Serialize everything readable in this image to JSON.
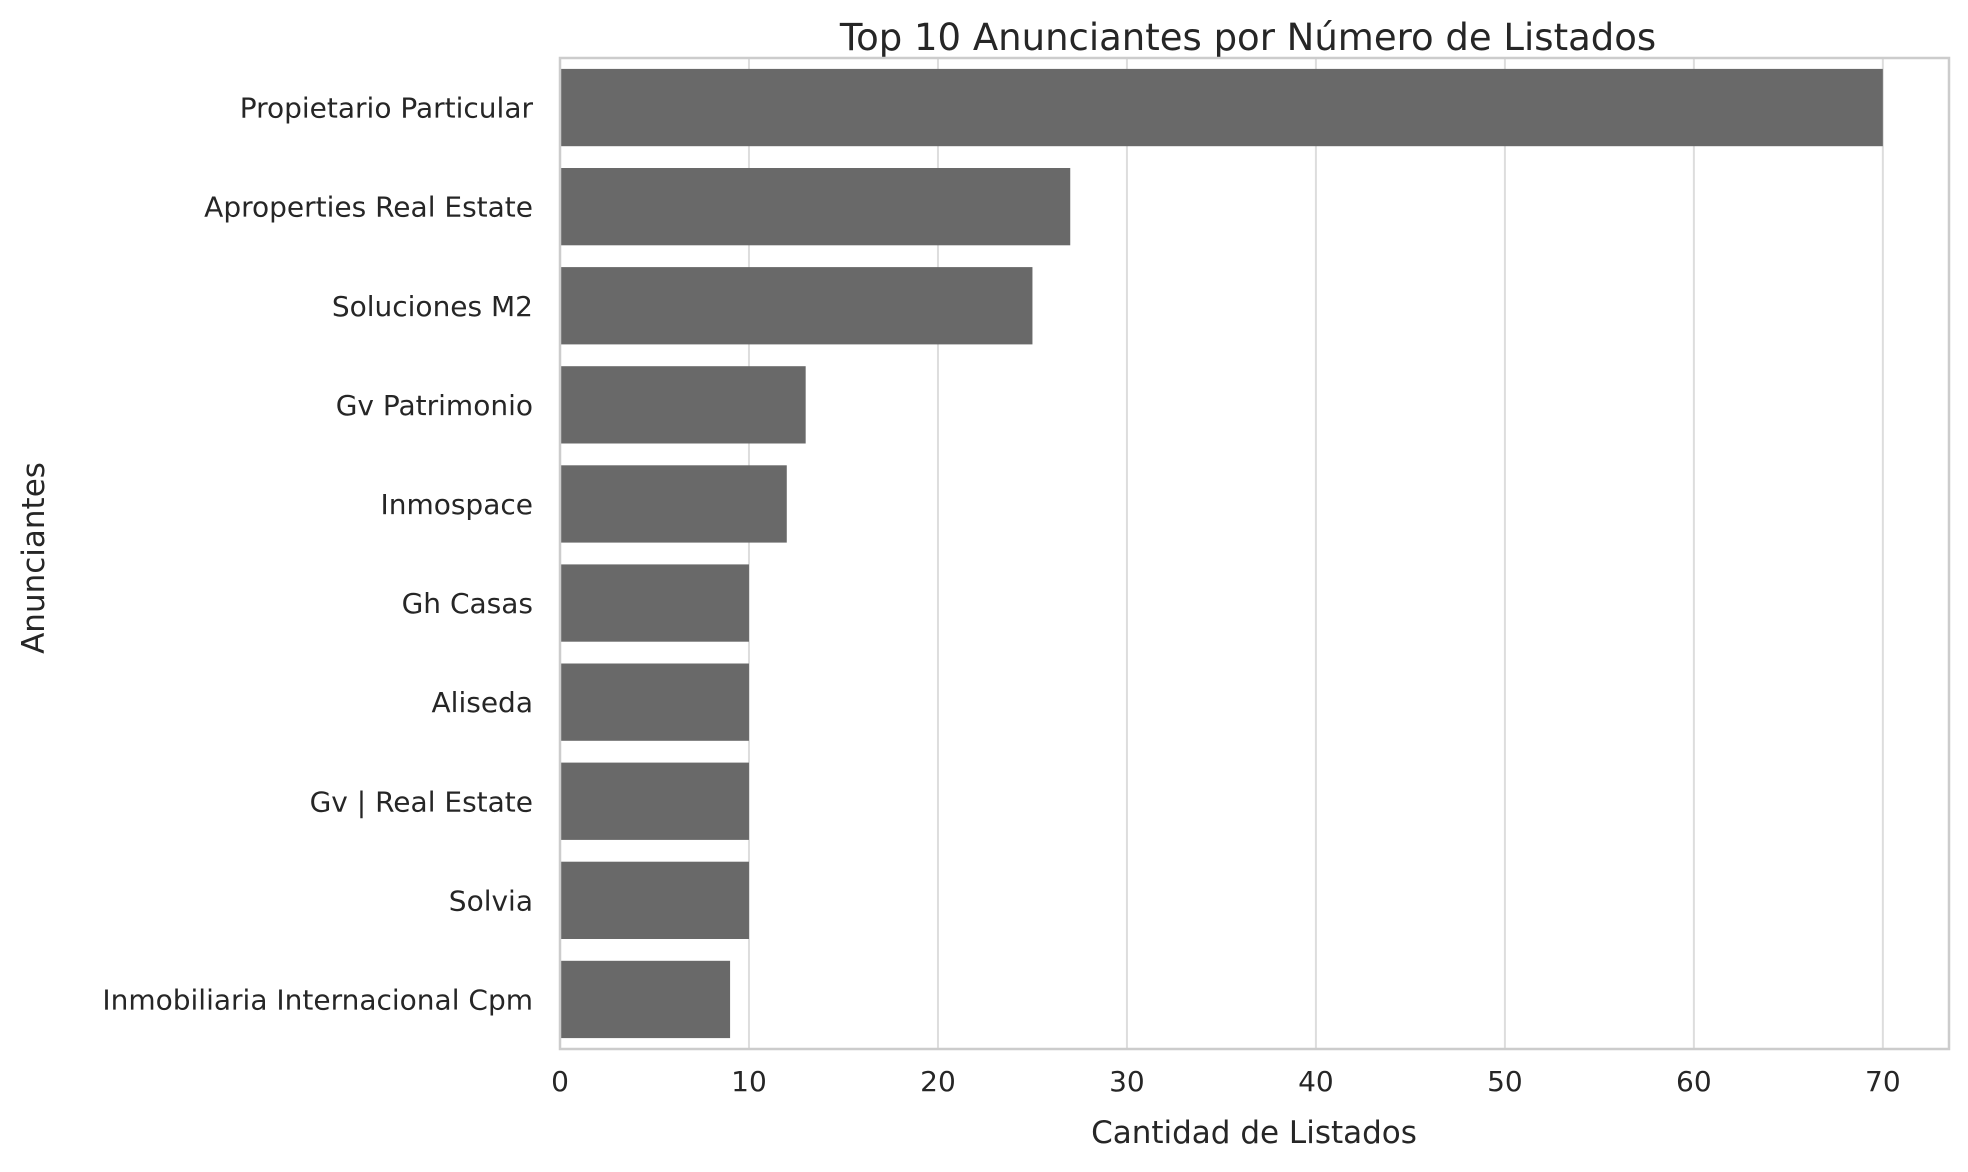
{
  "chart_data": {
    "type": "bar",
    "orientation": "horizontal",
    "title": "Top 10 Anunciantes por Número de Listados",
    "xlabel": "Cantidad de Listados",
    "ylabel": "Anunciantes",
    "categories": [
      "Propietario Particular",
      "Aproperties Real Estate",
      "Soluciones M2",
      "Gv Patrimonio",
      "Inmospace",
      "Gh Casas",
      "Aliseda",
      "Gv | Real Estate",
      "Solvia",
      "Inmobiliaria Internacional Cpm"
    ],
    "values": [
      70,
      27,
      25,
      13,
      12,
      10,
      10,
      10,
      10,
      9
    ],
    "xlim": [
      0,
      73.5
    ],
    "xticks": [
      "0",
      "10",
      "20",
      "30",
      "40",
      "50",
      "60",
      "70"
    ],
    "grid": true,
    "colors": {
      "bar": "#696969",
      "grid": "#dddddd",
      "frame": "#cccccc",
      "text": "#262626"
    }
  }
}
